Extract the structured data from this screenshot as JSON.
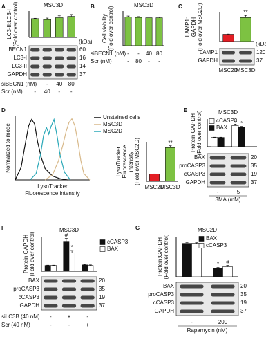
{
  "chart_data": [
    {
      "type": "bar",
      "panel": "A",
      "title": "MSC3D",
      "ylabel": [
        "LC3-II:LC3-I",
        "(Fold over control)"
      ],
      "ylim": [
        0,
        1.4
      ],
      "series": [
        {
          "color": "#7dc242",
          "values": [
            1.0,
            0.95,
            1.05,
            1.12
          ],
          "errors": [
            0.02,
            0.08,
            0.1,
            0.1
          ]
        }
      ],
      "blot": {
        "unit": "(kDa)",
        "rows": [
          {
            "name": "BECN1",
            "kda": "60"
          },
          {
            "name": "LC3-I",
            "kda": "16"
          },
          {
            "name": "LC3-II",
            "kda": "14"
          },
          {
            "name": "GAPDH",
            "kda": "37"
          }
        ]
      },
      "treatments": [
        {
          "name": "siBECN1 (nM)",
          "values": [
            "-",
            "-",
            "40",
            "80"
          ]
        },
        {
          "name": "Scr (nM)",
          "values": [
            "-",
            "40",
            "-",
            "-"
          ]
        }
      ]
    },
    {
      "type": "bar",
      "panel": "B",
      "title": "MSC3D",
      "ylabel": [
        "Cell viability",
        "(Fold over control)"
      ],
      "ylim": [
        0,
        1.2
      ],
      "series": [
        {
          "color": "#7dc242",
          "values": [
            1.0,
            0.98,
            0.97,
            0.97
          ],
          "errors": [
            0.03,
            0.03,
            0.03,
            0.03
          ]
        }
      ],
      "treatments": [
        {
          "name": "siBECN1 (nM)",
          "values": [
            "-",
            "-",
            "40",
            "80"
          ]
        },
        {
          "name": "Scr (nM)",
          "values": [
            "-",
            "80",
            "-",
            "-"
          ]
        }
      ]
    },
    {
      "type": "bar",
      "panel": "C",
      "ylabel": [
        "LAMP1:",
        "GAPDH",
        "(Fold over MSC2D)"
      ],
      "ylim": [
        0,
        4
      ],
      "categories": [
        "MSC2D",
        "MSC3D"
      ],
      "series": [
        {
          "colors": [
            "#e31e24",
            "#7dc242"
          ],
          "values": [
            1.0,
            3.3
          ],
          "errors": [
            0.03,
            0.3
          ],
          "annotations": [
            null,
            "**"
          ]
        }
      ],
      "blot": {
        "unit": "(kDa)",
        "rows": [
          {
            "name": "LAMP1",
            "kda": "120"
          },
          {
            "name": "GAPDH",
            "kda": "37"
          }
        ]
      }
    },
    {
      "type": "line",
      "panel": "D",
      "ylabel": [
        "Normalized to mode"
      ],
      "xlabel": [
        "LysoTracker",
        "Fluorescence intensity"
      ],
      "xlim": [
        0,
        100
      ],
      "ylim": [
        0,
        100
      ],
      "legend": "right",
      "series": [
        {
          "name": "Unstained cells",
          "color": "#111111",
          "x": [
            0,
            8,
            14,
            18,
            22,
            26,
            30,
            35,
            40,
            50,
            60,
            70
          ],
          "values": [
            0,
            20,
            60,
            85,
            95,
            88,
            60,
            35,
            18,
            6,
            2,
            0
          ]
        },
        {
          "name": "MSC3D",
          "color": "#d8b98a",
          "x": [
            40,
            50,
            58,
            64,
            68,
            72,
            76,
            80,
            84,
            88,
            92,
            100
          ],
          "values": [
            0,
            8,
            30,
            55,
            75,
            90,
            96,
            85,
            60,
            30,
            10,
            0
          ]
        },
        {
          "name": "MSC2D",
          "color": "#2aa8b8",
          "x": [
            20,
            28,
            34,
            38,
            42,
            45,
            48,
            52,
            56,
            60,
            66,
            74
          ],
          "values": [
            0,
            10,
            40,
            70,
            82,
            72,
            84,
            95,
            70,
            40,
            12,
            0
          ]
        }
      ]
    },
    {
      "type": "bar",
      "ylabel": [
        "LysoTracker",
        "Fluorescence",
        "intensity",
        "(Fold over MSC2D)"
      ],
      "ylim": [
        0,
        5.5
      ],
      "categories": [
        "MSC2D",
        "MSC3D"
      ],
      "series": [
        {
          "colors": [
            "#e31e24",
            "#7dc242"
          ],
          "values": [
            1.0,
            4.7
          ],
          "errors": [
            0.03,
            0.25
          ],
          "annotations": [
            null,
            "**"
          ]
        }
      ]
    },
    {
      "type": "bar",
      "panel": "E",
      "title": "MSC3D",
      "ylabel": [
        "Protein:GAPDH",
        "(Fold over control)"
      ],
      "ylim": [
        0,
        3
      ],
      "legend": "upper left",
      "series": [
        {
          "name": "cCASP3",
          "color": "#ffffff",
          "values": [
            1.0,
            2.3
          ],
          "errors": [
            0.03,
            0.15
          ],
          "annotations": [
            null,
            "#"
          ]
        },
        {
          "name": "BAX",
          "color": "#111111",
          "values": [
            1.0,
            2.1
          ],
          "errors": [
            0.03,
            0.1
          ],
          "annotations": [
            null,
            "*"
          ]
        }
      ],
      "blot": {
        "rows": [
          {
            "name": "BAX",
            "kda": "20"
          },
          {
            "name": "proCASP3",
            "kda": "35"
          },
          {
            "name": "cCASP3",
            "kda": "19"
          },
          {
            "name": "GAPDH",
            "kda": "37"
          }
        ]
      },
      "treatments": [
        {
          "name": "3MA (mM)",
          "values": [
            "-",
            "5"
          ]
        }
      ]
    },
    {
      "type": "bar",
      "panel": "F",
      "title": "MSC3D",
      "ylabel": [
        "Protein:GAPDH",
        "(Fold over control)"
      ],
      "ylim": [
        0,
        6
      ],
      "legend": "right",
      "series": [
        {
          "name": "cCASP3",
          "color": "#111111",
          "values": [
            1.0,
            5.2,
            1.1
          ],
          "errors": [
            0.05,
            0.5,
            0.1
          ],
          "annotations": [
            null,
            "#",
            null
          ]
        },
        {
          "name": "BAX",
          "color": "#ffffff",
          "values": [
            1.0,
            3.2,
            1.0
          ],
          "errors": [
            0.05,
            0.4,
            0.1
          ],
          "annotations": [
            null,
            "*",
            null
          ]
        }
      ],
      "blot": {
        "rows": [
          {
            "name": "BAX",
            "kda": "20"
          },
          {
            "name": "proCASP3",
            "kda": "35"
          },
          {
            "name": "cCASP3",
            "kda": "19"
          },
          {
            "name": "GAPDH",
            "kda": "37"
          }
        ]
      },
      "treatments": [
        {
          "name": "siLC3B (40 nM)",
          "values": [
            "-",
            "+",
            "-"
          ]
        },
        {
          "name": "Scr (40 nM)",
          "values": [
            "-",
            "-",
            "+"
          ]
        }
      ]
    },
    {
      "type": "bar",
      "panel": "G",
      "title": "MSC2D",
      "ylabel": [
        "Protein:GAPDH",
        "(Fold over control)"
      ],
      "ylim": [
        0,
        1.2
      ],
      "legend": "upper center",
      "series": [
        {
          "name": "BAX",
          "color": "#111111",
          "values": [
            1.0,
            0.25
          ],
          "errors": [
            0.02,
            0.03
          ],
          "annotations": [
            null,
            "*"
          ]
        },
        {
          "name": "cCASP3",
          "color": "#ffffff",
          "values": [
            1.0,
            0.3
          ],
          "errors": [
            0.02,
            0.04
          ],
          "annotations": [
            null,
            "#"
          ]
        }
      ],
      "blot": {
        "rows": [
          {
            "name": "BAX",
            "kda": "20"
          },
          {
            "name": "proCASP3",
            "kda": "35"
          },
          {
            "name": "cCASP3",
            "kda": "19"
          },
          {
            "name": "GAPDH",
            "kda": "37"
          }
        ]
      },
      "treatments": [
        {
          "name": "Rapamycin (nM)",
          "values": [
            "-",
            "200"
          ]
        }
      ]
    }
  ]
}
